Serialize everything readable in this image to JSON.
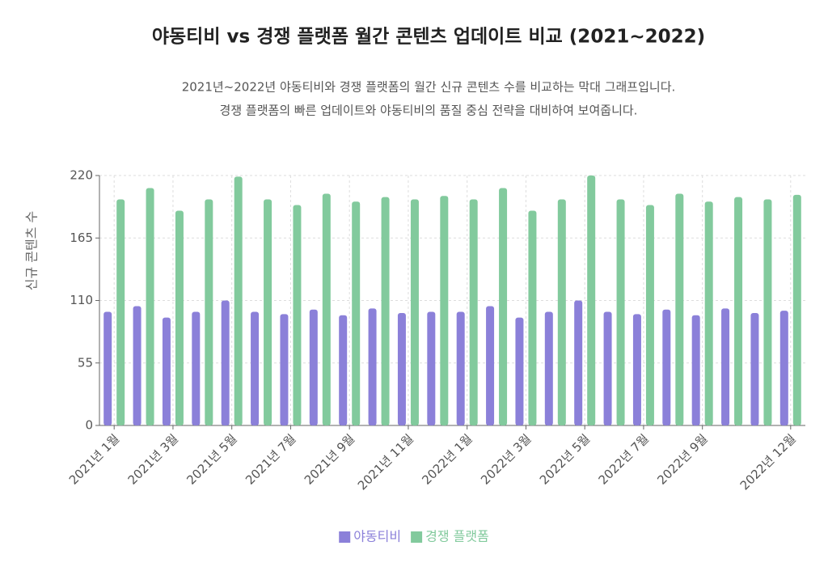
{
  "chart_data": {
    "type": "bar",
    "title": "야동티비 vs 경쟁 플랫폼 월간 콘텐츠 업데이트 비교 (2021~2022)",
    "subtitle": [
      "2021년~2022년 야동티비와 경쟁 플랫폼의 월간 신규 콘텐츠 수를 비교하는 막대 그래프입니다.",
      "경쟁 플랫폼의 빠른 업데이트와 야동티비의 품질 중심 전략을 대비하여 보여줍니다."
    ],
    "ylabel": "신규 콘텐츠 수",
    "categories": [
      "2021년 1월",
      null,
      "2021년 3월",
      null,
      "2021년 5월",
      null,
      "2021년 7월",
      null,
      "2021년 9월",
      null,
      "2021년 11월",
      null,
      "2022년 1월",
      null,
      "2022년 3월",
      null,
      "2022년 5월",
      null,
      "2022년 7월",
      null,
      "2022년 9월",
      null,
      null,
      "2022년 12월"
    ],
    "series": [
      {
        "name": "야동티비",
        "color": "#8b80d9",
        "values": [
          100,
          105,
          95,
          100,
          110,
          100,
          98,
          102,
          97,
          103,
          99,
          100,
          100,
          105,
          95,
          100,
          110,
          100,
          98,
          102,
          97,
          103,
          99,
          101
        ]
      },
      {
        "name": "경쟁 플랫폼",
        "color": "#82ca9d",
        "values": [
          199,
          209,
          189,
          199,
          219,
          199,
          194,
          204,
          197,
          201,
          199,
          202,
          199,
          209,
          189,
          199,
          220,
          199,
          194,
          204,
          197,
          201,
          199,
          203
        ]
      }
    ],
    "ylim": [
      0,
      220
    ],
    "yticks": [
      0,
      55,
      110,
      165,
      220
    ],
    "grid": true,
    "legend": "bottom"
  }
}
